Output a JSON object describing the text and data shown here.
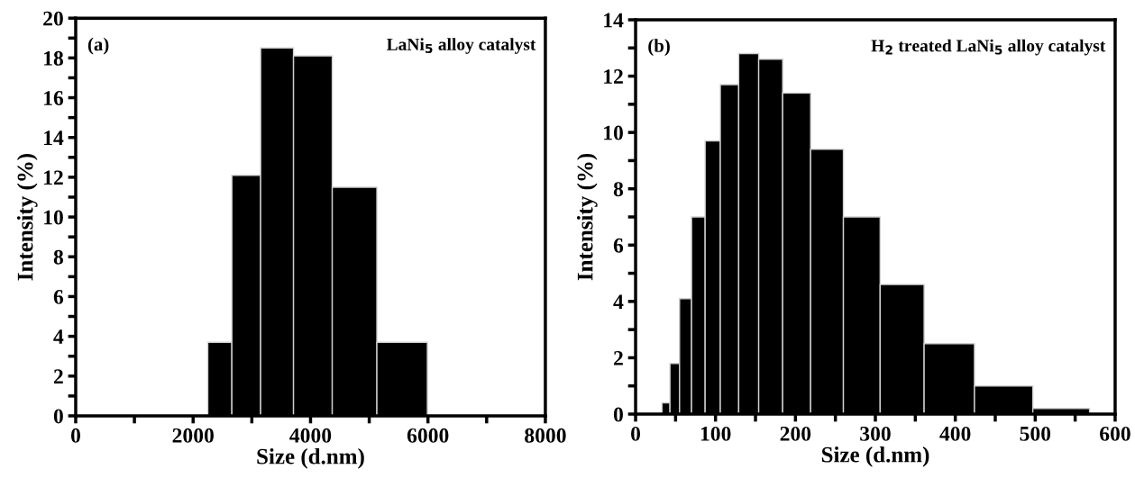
{
  "chart_data": [
    {
      "type": "histogram",
      "xlabel": "Size (d.nm)",
      "ylabel": "Intensity (%)",
      "annotations": [
        "(a)",
        "LaNi$_{5}$ alloy catalyst"
      ],
      "bins": [
        2250,
        2660,
        3150,
        3710,
        4370,
        5130,
        5990
      ],
      "values": [
        3.7,
        12.1,
        18.5,
        18.1,
        11.5,
        3.7
      ],
      "color": "#000000",
      "xlim": [
        0,
        8000
      ],
      "xticks": [
        0,
        {
          "value": 1000,
          "label": null
        },
        2000,
        {
          "value": 3000,
          "label": null
        },
        4000,
        {
          "value": 5000,
          "label": null
        },
        6000,
        {
          "value": 7000,
          "label": null
        },
        8000
      ],
      "ylim": [
        0,
        20
      ],
      "yticks": [
        0,
        {
          "value": 1,
          "label": null
        },
        2,
        {
          "value": 3,
          "label": null
        },
        4,
        {
          "value": 5,
          "label": null
        },
        6,
        {
          "value": 7,
          "label": null
        },
        8,
        {
          "value": 9,
          "label": null
        },
        10,
        {
          "value": 11,
          "label": null
        },
        12,
        {
          "value": 13,
          "label": null
        },
        14,
        {
          "value": 15,
          "label": null
        },
        16,
        {
          "value": 17,
          "label": null
        },
        18,
        {
          "value": 19,
          "label": null
        },
        20
      ],
      "grid": false
    },
    {
      "type": "histogram",
      "xlabel": "Size (d.nm)",
      "ylabel": "Intensity (%)",
      "annotations": [
        "(b)",
        "H$_{2}$ treated LaNi$_{5}$ alloy catalyst"
      ],
      "bins": [
        33,
        43,
        55,
        70,
        87,
        106,
        129,
        154,
        184,
        219,
        260,
        306,
        361,
        424,
        497,
        568
      ],
      "values": [
        0.4,
        1.8,
        4.1,
        7.0,
        9.7,
        11.7,
        12.8,
        12.6,
        11.4,
        9.4,
        7.0,
        4.6,
        2.5,
        1.0,
        0.2
      ],
      "color": "#000000",
      "xlim": [
        0,
        600
      ],
      "xticks": [
        0,
        {
          "value": 50,
          "label": null
        },
        100,
        {
          "value": 150,
          "label": null
        },
        200,
        {
          "value": 250,
          "label": null
        },
        300,
        {
          "value": 350,
          "label": null
        },
        400,
        {
          "value": 450,
          "label": null
        },
        500,
        {
          "value": 550,
          "label": null
        },
        600
      ],
      "ylim": [
        0,
        14
      ],
      "yticks": [
        0,
        {
          "value": 1,
          "label": null
        },
        2,
        {
          "value": 3,
          "label": null
        },
        4,
        {
          "value": 5,
          "label": null
        },
        6,
        {
          "value": 7,
          "label": null
        },
        8,
        {
          "value": 9,
          "label": null
        },
        10,
        {
          "value": 11,
          "label": null
        },
        12,
        {
          "value": 13,
          "label": null
        },
        14
      ],
      "grid": false
    }
  ]
}
